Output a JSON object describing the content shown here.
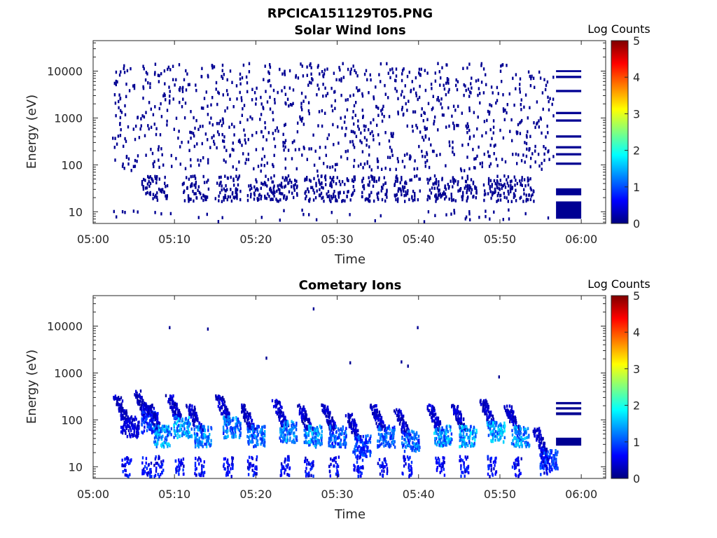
{
  "figure_title": "RPCICA151129T05.PNG",
  "colormap": [
    "#00007f",
    "#0000ff",
    "#007fff",
    "#00ffff",
    "#7fff7f",
    "#ffff00",
    "#ff7f00",
    "#ff0000",
    "#7f0000"
  ],
  "chart_data": [
    {
      "type": "heatmap",
      "title": "Solar Wind Ions",
      "xlabel": "Time",
      "ylabel": "Energy (eV)",
      "xlim_minutes": [
        0,
        63
      ],
      "ylim_log10": [
        0.75,
        4.65
      ],
      "xticks": [
        {
          "minute": 0,
          "label": "05:00"
        },
        {
          "minute": 10,
          "label": "05:10"
        },
        {
          "minute": 20,
          "label": "05:20"
        },
        {
          "minute": 30,
          "label": "05:30"
        },
        {
          "minute": 40,
          "label": "05:40"
        },
        {
          "minute": 50,
          "label": "05:50"
        },
        {
          "minute": 60,
          "label": "06:00"
        }
      ],
      "yticks": [
        {
          "log10": 1,
          "label": "10"
        },
        {
          "log10": 2,
          "label": "100"
        },
        {
          "log10": 3,
          "label": "1000"
        },
        {
          "log10": 4,
          "label": "10000"
        }
      ],
      "colorbar": {
        "label": "Log Counts",
        "min": 0,
        "max": 5,
        "ticks": [
          "0",
          "1",
          "2",
          "3",
          "4",
          "5"
        ]
      },
      "data_time_range_minutes": [
        2.3,
        56.5
      ],
      "noise_energy_range_log10": [
        1.9,
        4.2
      ],
      "low_energy_cluster_minutes": [
        7.5,
        12.5,
        16.5,
        20.5,
        23.5,
        27.5,
        30.5,
        34.5,
        38.5,
        42.5,
        45.5,
        49.5,
        52.5
      ],
      "typical_log_counts": 0.1,
      "bands": [
        {
          "t0": 56.9,
          "t1": 60.0,
          "e_lo_log10": 0.85,
          "e_hi_log10": 1.22,
          "log_counts": 0.1
        },
        {
          "t0": 56.9,
          "t1": 60.0,
          "e_lo_log10": 1.35,
          "e_hi_log10": 1.5,
          "log_counts": 0.1
        },
        {
          "t0": 56.9,
          "t1": 60.0,
          "e_lo_log10": 2.0,
          "e_hi_log10": 2.05,
          "log_counts": 0.1
        },
        {
          "t0": 56.9,
          "t1": 60.0,
          "e_lo_log10": 2.2,
          "e_hi_log10": 2.25,
          "log_counts": 0.1
        },
        {
          "t0": 56.9,
          "t1": 60.0,
          "e_lo_log10": 2.35,
          "e_hi_log10": 2.4,
          "log_counts": 0.1
        },
        {
          "t0": 56.9,
          "t1": 60.0,
          "e_lo_log10": 2.58,
          "e_hi_log10": 2.63,
          "log_counts": 0.1
        },
        {
          "t0": 56.9,
          "t1": 60.0,
          "e_lo_log10": 2.92,
          "e_hi_log10": 2.97,
          "log_counts": 0.1
        },
        {
          "t0": 56.9,
          "t1": 60.0,
          "e_lo_log10": 3.08,
          "e_hi_log10": 3.13,
          "log_counts": 0.1
        },
        {
          "t0": 56.9,
          "t1": 60.0,
          "e_lo_log10": 3.55,
          "e_hi_log10": 3.6,
          "log_counts": 0.1
        },
        {
          "t0": 56.9,
          "t1": 60.0,
          "e_lo_log10": 3.85,
          "e_hi_log10": 3.9,
          "log_counts": 0.1
        },
        {
          "t0": 56.9,
          "t1": 60.0,
          "e_lo_log10": 3.98,
          "e_hi_log10": 4.02,
          "log_counts": 0.1
        }
      ]
    },
    {
      "type": "heatmap",
      "title": "Cometary Ions",
      "xlabel": "Time",
      "ylabel": "Energy (eV)",
      "xlim_minutes": [
        0,
        63
      ],
      "ylim_log10": [
        0.75,
        4.65
      ],
      "xticks": [
        {
          "minute": 0,
          "label": "05:00"
        },
        {
          "minute": 10,
          "label": "05:10"
        },
        {
          "minute": 20,
          "label": "05:20"
        },
        {
          "minute": 30,
          "label": "05:30"
        },
        {
          "minute": 40,
          "label": "05:40"
        },
        {
          "minute": 50,
          "label": "05:50"
        },
        {
          "minute": 60,
          "label": "06:00"
        }
      ],
      "yticks": [
        {
          "log10": 1,
          "label": "10"
        },
        {
          "log10": 2,
          "label": "100"
        },
        {
          "log10": 3,
          "label": "1000"
        },
        {
          "log10": 4,
          "label": "10000"
        }
      ],
      "colorbar": {
        "label": "Log Counts",
        "min": 0,
        "max": 5,
        "ticks": [
          "0",
          "1",
          "2",
          "3",
          "4",
          "5"
        ]
      },
      "ion_bursts": [
        {
          "t": 4.0,
          "e_log10": 2.0,
          "peak_log_counts": 0.6
        },
        {
          "t": 6.5,
          "e_log10": 2.1,
          "peak_log_counts": 1.1
        },
        {
          "t": 8.0,
          "e_log10": 1.8,
          "peak_log_counts": 1.8
        },
        {
          "t": 10.5,
          "e_log10": 2.0,
          "peak_log_counts": 1.9
        },
        {
          "t": 13.0,
          "e_log10": 1.8,
          "peak_log_counts": 1.7
        },
        {
          "t": 16.5,
          "e_log10": 2.0,
          "peak_log_counts": 1.6
        },
        {
          "t": 19.5,
          "e_log10": 1.8,
          "peak_log_counts": 1.5
        },
        {
          "t": 23.5,
          "e_log10": 1.9,
          "peak_log_counts": 1.7
        },
        {
          "t": 26.5,
          "e_log10": 1.8,
          "peak_log_counts": 1.9
        },
        {
          "t": 29.5,
          "e_log10": 1.8,
          "peak_log_counts": 1.4
        },
        {
          "t": 32.5,
          "e_log10": 1.6,
          "peak_log_counts": 1.2
        },
        {
          "t": 35.5,
          "e_log10": 1.8,
          "peak_log_counts": 1.4
        },
        {
          "t": 38.5,
          "e_log10": 1.7,
          "peak_log_counts": 1.5
        },
        {
          "t": 42.5,
          "e_log10": 1.8,
          "peak_log_counts": 1.8
        },
        {
          "t": 45.5,
          "e_log10": 1.8,
          "peak_log_counts": 1.9
        },
        {
          "t": 49.0,
          "e_log10": 1.9,
          "peak_log_counts": 1.9
        },
        {
          "t": 52.0,
          "e_log10": 1.8,
          "peak_log_counts": 1.7
        },
        {
          "t": 55.5,
          "e_log10": 1.3,
          "peak_log_counts": 1.2
        }
      ],
      "isolated_counts": [
        {
          "t": 9.3,
          "e_log10": 4.0,
          "log_counts": 0.1
        },
        {
          "t": 14.0,
          "e_log10": 3.97,
          "log_counts": 0.1
        },
        {
          "t": 21.2,
          "e_log10": 3.35,
          "log_counts": 0.1
        },
        {
          "t": 27.0,
          "e_log10": 4.4,
          "log_counts": 0.1
        },
        {
          "t": 31.5,
          "e_log10": 3.25,
          "log_counts": 0.1
        },
        {
          "t": 37.8,
          "e_log10": 3.27,
          "log_counts": 0.1
        },
        {
          "t": 38.6,
          "e_log10": 3.18,
          "log_counts": 0.1
        },
        {
          "t": 39.8,
          "e_log10": 4.0,
          "log_counts": 0.1
        },
        {
          "t": 49.8,
          "e_log10": 2.95,
          "log_counts": 0.1
        }
      ],
      "bands": [
        {
          "t0": 56.9,
          "t1": 60.0,
          "e_lo_log10": 1.45,
          "e_hi_log10": 1.62,
          "log_counts": 0.1
        },
        {
          "t0": 56.9,
          "t1": 60.0,
          "e_lo_log10": 2.1,
          "e_hi_log10": 2.16,
          "log_counts": 0.1
        },
        {
          "t0": 56.9,
          "t1": 60.0,
          "e_lo_log10": 2.22,
          "e_hi_log10": 2.27,
          "log_counts": 0.1
        },
        {
          "t0": 56.9,
          "t1": 60.0,
          "e_lo_log10": 2.33,
          "e_hi_log10": 2.38,
          "log_counts": 0.1
        }
      ]
    }
  ]
}
